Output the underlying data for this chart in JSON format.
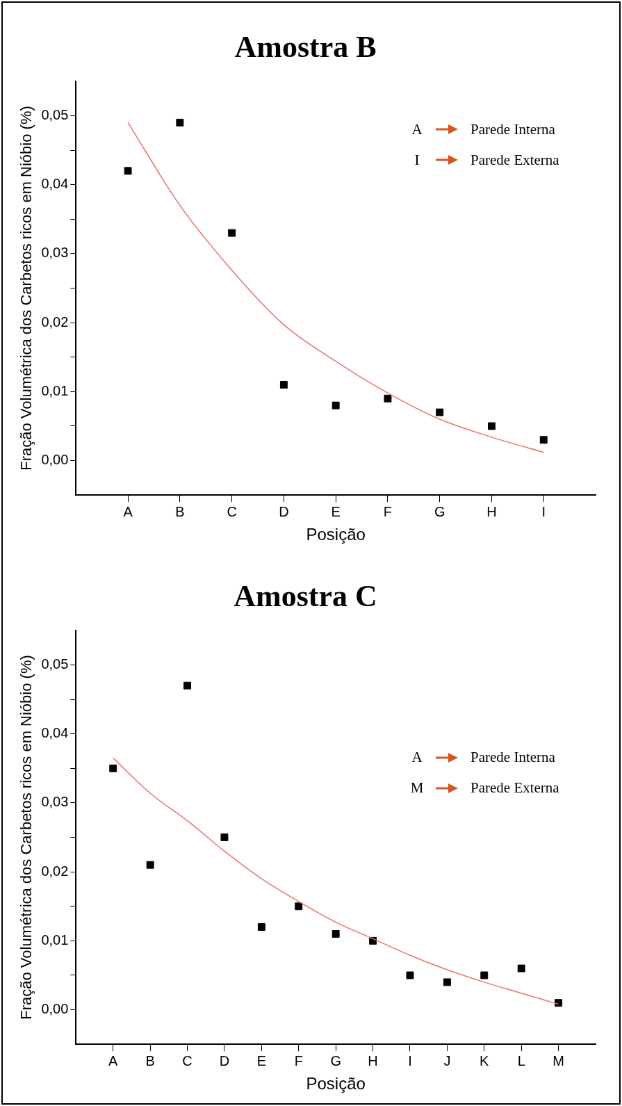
{
  "chart_data": [
    {
      "type": "scatter",
      "title": "Amostra B",
      "xlabel": "Posição",
      "ylabel": "Fração Volumétrica dos Carbetos ricos em Nióbio (%)",
      "categories": [
        "A",
        "B",
        "C",
        "D",
        "E",
        "F",
        "G",
        "H",
        "I"
      ],
      "series": [
        {
          "type": "scatter",
          "color": "#000000",
          "marker": "square",
          "values": [
            0.042,
            0.049,
            0.033,
            0.011,
            0.008,
            0.009,
            0.007,
            0.005,
            0.003
          ]
        },
        {
          "type": "line",
          "color": "#f07070",
          "marker": "none",
          "values": [
            0.049,
            0.037,
            0.0276,
            0.0197,
            0.0144,
            0.0098,
            0.006,
            0.0034,
            0.0012
          ]
        }
      ],
      "ylim": [
        -0.005,
        0.055
      ],
      "yticks": [
        {
          "value": 0,
          "label": "0,00"
        },
        {
          "value": 0.005,
          "label": null
        },
        {
          "value": 0.01,
          "label": "0,01"
        },
        {
          "value": 0.015,
          "label": null
        },
        {
          "value": 0.02,
          "label": "0,02"
        },
        {
          "value": 0.025,
          "label": null
        },
        {
          "value": 0.03,
          "label": "0,03"
        },
        {
          "value": 0.035,
          "label": null
        },
        {
          "value": 0.04,
          "label": "0,04"
        },
        {
          "value": 0.045,
          "label": null
        },
        {
          "value": 0.05,
          "label": "0,05"
        }
      ],
      "annotations": [
        "A",
        "Parede Interna",
        "I",
        "Parede Externa"
      ]
    },
    {
      "type": "scatter",
      "title": "Amostra C",
      "xlabel": "Posição",
      "ylabel": "Fração Volumétrica dos Carbetos ricos em Nióbio (%)",
      "categories": [
        "A",
        "B",
        "C",
        "D",
        "E",
        "F",
        "G",
        "H",
        "I",
        "J",
        "K",
        "L",
        "M"
      ],
      "series": [
        {
          "type": "scatter",
          "color": "#000000",
          "marker": "square",
          "values": [
            0.035,
            0.021,
            0.047,
            0.025,
            0.012,
            0.015,
            0.011,
            0.01,
            0.005,
            0.004,
            0.005,
            0.006,
            0.001
          ]
        },
        {
          "type": "line",
          "color": "#f07070",
          "marker": "none",
          "values": [
            0.0365,
            0.0314,
            0.0274,
            0.023,
            0.019,
            0.0157,
            0.0127,
            0.0103,
            0.0079,
            0.0058,
            0.004,
            0.0024,
            0.0008
          ]
        }
      ],
      "ylim": [
        -0.005,
        0.055
      ],
      "yticks": [
        {
          "value": 0,
          "label": "0,00"
        },
        {
          "value": 0.005,
          "label": null
        },
        {
          "value": 0.01,
          "label": "0,01"
        },
        {
          "value": 0.015,
          "label": null
        },
        {
          "value": 0.02,
          "label": "0,02"
        },
        {
          "value": 0.025,
          "label": null
        },
        {
          "value": 0.03,
          "label": "0,03"
        },
        {
          "value": 0.035,
          "label": null
        },
        {
          "value": 0.04,
          "label": "0,04"
        },
        {
          "value": 0.045,
          "label": null
        },
        {
          "value": 0.05,
          "label": "0,05"
        }
      ],
      "annotations": [
        "A",
        "Parede Interna",
        "M",
        "Parede Externa"
      ]
    }
  ]
}
